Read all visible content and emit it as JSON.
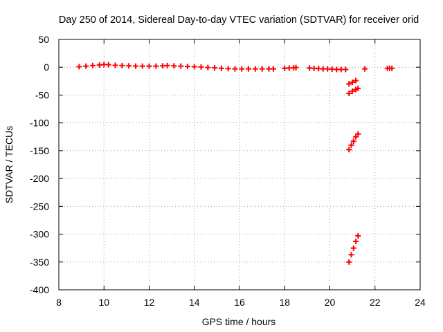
{
  "chart_data": {
    "type": "scatter",
    "title": "Day 250 of 2014, Sidereal Day-to-day VTEC variation (SDTVAR) for receiver orid",
    "xlabel": "GPS time / hours",
    "ylabel": "SDTVAR / TECUs",
    "xlim": [
      8,
      24
    ],
    "ylim": [
      -400,
      50
    ],
    "xticks": [
      8,
      10,
      12,
      14,
      16,
      18,
      20,
      22,
      24
    ],
    "yticks": [
      50,
      0,
      -50,
      -100,
      -150,
      -200,
      -250,
      -300,
      -350,
      -400
    ],
    "grid": true,
    "marker_color": "#ff0000",
    "series": [
      {
        "points": [
          [
            8.9,
            1
          ],
          [
            9.2,
            2
          ],
          [
            9.5,
            3
          ],
          [
            9.8,
            4
          ],
          [
            10.0,
            5
          ],
          [
            10.2,
            4.5
          ],
          [
            10.5,
            3.5
          ],
          [
            10.8,
            3
          ],
          [
            11.1,
            2.5
          ],
          [
            11.4,
            2
          ],
          [
            11.7,
            2
          ],
          [
            12.0,
            2
          ],
          [
            12.3,
            2
          ],
          [
            12.6,
            2.5
          ],
          [
            12.8,
            3
          ],
          [
            13.1,
            2.5
          ],
          [
            13.4,
            2
          ],
          [
            13.7,
            1.5
          ],
          [
            14.0,
            1
          ],
          [
            14.3,
            0.5
          ],
          [
            14.6,
            -0.5
          ],
          [
            14.9,
            -1
          ],
          [
            15.2,
            -2
          ],
          [
            15.5,
            -2.5
          ],
          [
            15.8,
            -3
          ],
          [
            16.1,
            -3
          ],
          [
            16.4,
            -3
          ],
          [
            16.7,
            -3
          ],
          [
            17.0,
            -3
          ],
          [
            17.3,
            -3
          ],
          [
            17.5,
            -3
          ],
          [
            18.0,
            -2
          ],
          [
            18.2,
            -1.5
          ],
          [
            18.4,
            -1
          ],
          [
            18.5,
            -0.5
          ],
          [
            19.1,
            -1.5
          ],
          [
            19.3,
            -2
          ],
          [
            19.5,
            -2.5
          ],
          [
            19.7,
            -3
          ],
          [
            19.9,
            -3
          ],
          [
            20.1,
            -3.5
          ],
          [
            20.3,
            -4
          ],
          [
            20.5,
            -4
          ],
          [
            20.7,
            -4
          ],
          [
            20.85,
            -30
          ],
          [
            21.0,
            -27
          ],
          [
            21.15,
            -24
          ],
          [
            20.85,
            -47
          ],
          [
            21.0,
            -43
          ],
          [
            21.15,
            -40
          ],
          [
            21.25,
            -38
          ],
          [
            20.85,
            -148
          ],
          [
            20.95,
            -140
          ],
          [
            21.05,
            -133
          ],
          [
            21.15,
            -125
          ],
          [
            21.25,
            -120
          ],
          [
            20.85,
            -350
          ],
          [
            20.95,
            -337
          ],
          [
            21.05,
            -325
          ],
          [
            21.15,
            -313
          ],
          [
            21.25,
            -303
          ],
          [
            21.55,
            -3
          ],
          [
            22.55,
            -2
          ],
          [
            22.65,
            -2
          ],
          [
            22.75,
            -2
          ]
        ]
      }
    ]
  }
}
